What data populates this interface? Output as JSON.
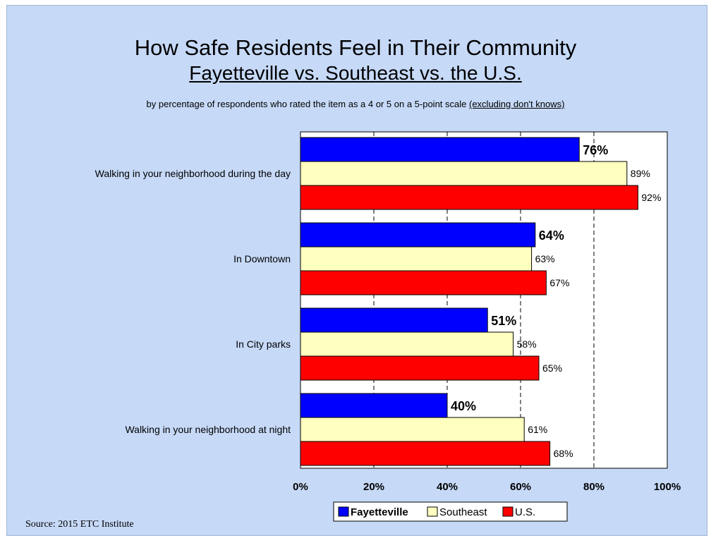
{
  "title": "How Safe Residents Feel in Their Community",
  "subtitle": "Fayetteville vs. Southeast vs. the U.S.",
  "note_main": "by percentage of respondents who rated the item as a 4 or 5 on a 5-point scale",
  "note_excl": "(excluding don't knows)",
  "source": "Source:  2015 ETC Institute",
  "colors": {
    "fayetteville": "#0000ff",
    "southeast": "#ffffc0",
    "us": "#ff0000"
  },
  "chart_data": {
    "type": "bar",
    "orientation": "horizontal",
    "categories": [
      "Walking in your neighborhood during the day",
      "In Downtown",
      "In City parks",
      "Walking in your neighborhood at night"
    ],
    "series": [
      {
        "name": "Fayetteville",
        "values": [
          76,
          64,
          51,
          40
        ],
        "color": "#0000ff",
        "labels": [
          "76%",
          "64%",
          "51%",
          "40%"
        ]
      },
      {
        "name": "Southeast",
        "values": [
          89,
          63,
          58,
          61
        ],
        "color": "#ffffc0",
        "labels": [
          "89%",
          "63%",
          "58%",
          "61%"
        ]
      },
      {
        "name": "U.S.",
        "values": [
          92,
          67,
          65,
          68
        ],
        "color": "#ff0000",
        "labels": [
          "92%",
          "67%",
          "65%",
          "68%"
        ]
      }
    ],
    "xlim": [
      0,
      100
    ],
    "xticks": [
      "0%",
      "20%",
      "40%",
      "60%",
      "80%",
      "100%"
    ],
    "gridlines": "dashed",
    "legend_position": "bottom"
  }
}
